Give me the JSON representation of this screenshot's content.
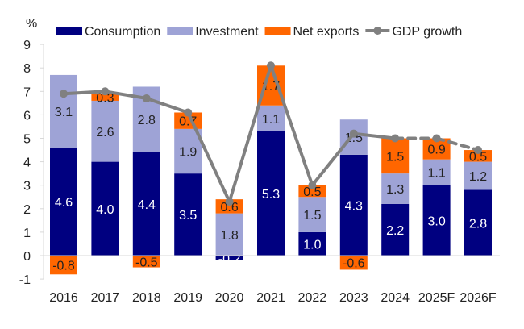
{
  "chart_data": {
    "type": "bar",
    "stacked": true,
    "ylabel": "%",
    "ylim": [
      -1,
      9
    ],
    "yticks": [
      -1,
      0,
      1,
      2,
      3,
      4,
      5,
      6,
      7,
      8,
      9
    ],
    "grid": false,
    "legend_position": "top",
    "categories": [
      "2016",
      "2017",
      "2018",
      "2019",
      "2020",
      "2021",
      "2022",
      "2023",
      "2024",
      "2025F",
      "2026F"
    ],
    "series": [
      {
        "name": "Consumption",
        "type": "bar",
        "color": "#000080",
        "label_color": "#ffffff",
        "values": [
          4.6,
          4.0,
          4.4,
          3.5,
          -0.2,
          5.3,
          1.0,
          4.3,
          2.2,
          3.0,
          2.8
        ]
      },
      {
        "name": "Investment",
        "type": "bar",
        "color": "#9ea3d6",
        "label_color": "#222222",
        "values": [
          3.1,
          2.6,
          2.8,
          1.9,
          1.8,
          1.1,
          1.5,
          1.5,
          1.3,
          1.1,
          1.2
        ]
      },
      {
        "name": "Net exports",
        "type": "bar",
        "color": "#ff6600",
        "label_color": "#222222",
        "values": [
          -0.8,
          0.3,
          -0.5,
          0.7,
          0.6,
          1.7,
          0.5,
          -0.6,
          1.5,
          0.9,
          0.5
        ]
      },
      {
        "name": "GDP growth",
        "type": "line",
        "color": "#808080",
        "dashed_from": "2024",
        "values": [
          6.9,
          7.0,
          6.7,
          6.1,
          2.3,
          8.1,
          3.0,
          5.2,
          5.0,
          5.0,
          4.5
        ]
      }
    ]
  }
}
